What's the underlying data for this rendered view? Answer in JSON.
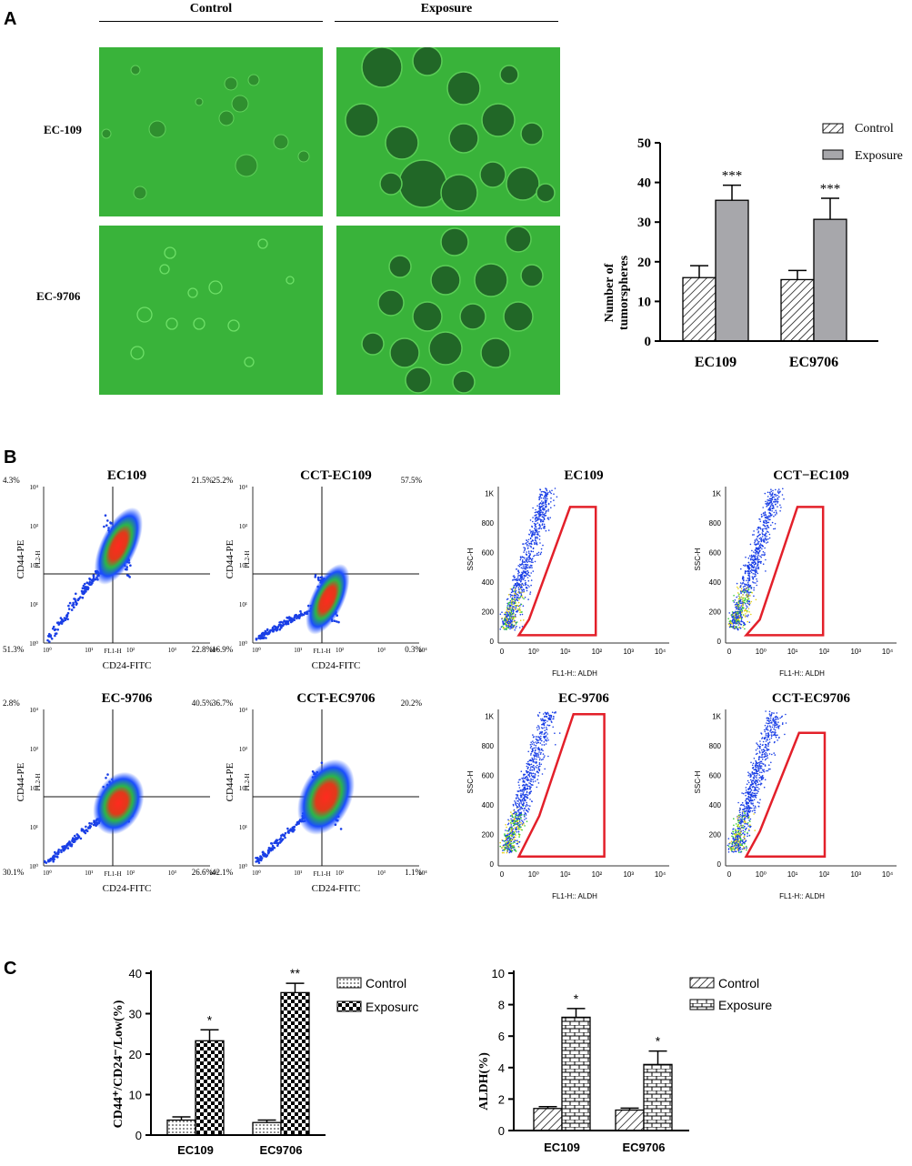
{
  "panels": {
    "a": "A",
    "b": "B",
    "c": "C"
  },
  "panel_a": {
    "col_control": "Control",
    "col_exposure": "Exposure",
    "row_1": "EC-109",
    "row_2": "EC-9706",
    "chart_data": {
      "type": "bar",
      "categories": [
        "EC109",
        "EC9706"
      ],
      "series": [
        {
          "name": "Control",
          "values": [
            16,
            15.5
          ],
          "errors": [
            3,
            2.3
          ]
        },
        {
          "name": "Exposure",
          "values": [
            35.5,
            30.7
          ],
          "errors": [
            3.8,
            5.3
          ]
        }
      ],
      "significance": [
        "***",
        "***"
      ],
      "ylabel_line1": "Number of",
      "ylabel_line2": "tumorspheres",
      "ylim": [
        0,
        50
      ],
      "yticks": [
        "0",
        "10",
        "20",
        "30",
        "40",
        "50"
      ],
      "legend": "top-right"
    }
  },
  "panel_b": {
    "cd_plots": [
      {
        "title": "EC109",
        "q_ul": "4.3%",
        "q_ur": "21.5%",
        "q_ll": "51.3%",
        "q_lr": "22.8%",
        "ylabel": "CD44-PE",
        "ych": "FL2-H",
        "xch": "FL1-H",
        "xlabel": "CD24-FITC"
      },
      {
        "title": "CCT-EC109",
        "q_ul": "25.2%",
        "q_ur": "57.5%",
        "q_ll": "16.9%",
        "q_lr": "0.3%",
        "ylabel": "CD44-PE",
        "ych": "FL2-H",
        "xch": "FL1-H",
        "xlabel": "CD24-FITC"
      },
      {
        "title": "EC-9706",
        "q_ul": "2.8%",
        "q_ur": "40.5%",
        "q_ll": "30.1%",
        "q_lr": "26.6%",
        "ylabel": "CD44-PE",
        "ych": "FL2-H",
        "xch": "FL1-H",
        "xlabel": "CD24-FITC"
      },
      {
        "title": "CCT-EC9706",
        "q_ul": "36.7%",
        "q_ur": "20.2%",
        "q_ll": "42.1%",
        "q_lr": "1.1%",
        "ylabel": "CD44-PE",
        "ych": "FL2-H",
        "xch": "FL1-H",
        "xlabel": "CD24-FITC"
      }
    ],
    "cd_ticks": [
      "10⁰",
      "10¹",
      "10²",
      "10³",
      "10⁴"
    ],
    "aldh_plots": [
      {
        "title": "EC109",
        "ylabel": "SSC-H",
        "xlabel": "FL1-H:: ALDH"
      },
      {
        "title": "CCT−EC109",
        "ylabel": "SSC-H",
        "xlabel": "FL1-H:: ALDH"
      },
      {
        "title": "EC-9706",
        "ylabel": "SSC-H",
        "xlabel": "FL1-H:: ALDH"
      },
      {
        "title": "CCT-EC9706",
        "ylabel": "SSC-H",
        "xlabel": "FL1-H:: ALDH"
      }
    ],
    "aldh_yticks": [
      "0",
      "200",
      "400",
      "600",
      "800",
      "1K"
    ],
    "aldh_xticks": [
      "0",
      "10⁰",
      "10¹",
      "10²",
      "10³",
      "10⁴"
    ]
  },
  "panel_c": {
    "chart_data": [
      {
        "type": "bar",
        "categories": [
          "EC109",
          "EC9706"
        ],
        "series": [
          {
            "name": "Control",
            "values": [
              3.7,
              3.1
            ],
            "errors": [
              0.8,
              0.6
            ]
          },
          {
            "name": "Exposure",
            "values": [
              23.3,
              35.2
            ],
            "errors": [
              2.7,
              2.3
            ]
          }
        ],
        "significance": [
          "*",
          "**"
        ],
        "ylabel": "CD44⁺/CD24⁻/Low(%)",
        "ylim": [
          0,
          40
        ],
        "yticks": [
          "0",
          "10",
          "20",
          "30",
          "40"
        ],
        "legend_exposure_label": "Exposurc",
        "legend": "top-right"
      },
      {
        "type": "bar",
        "categories": [
          "EC109",
          "EC9706"
        ],
        "series": [
          {
            "name": "Control",
            "values": [
              1.4,
              1.3
            ],
            "errors": [
              0.12,
              0.12
            ]
          },
          {
            "name": "Exposure",
            "values": [
              7.2,
              4.2
            ],
            "errors": [
              0.55,
              0.85
            ]
          }
        ],
        "significance": [
          "*",
          "*"
        ],
        "ylabel": "ALDH(%)",
        "ylim": [
          0,
          10
        ],
        "yticks": [
          "0",
          "2",
          "4",
          "6",
          "8",
          "10"
        ],
        "legend_exposure_label": "Exposure",
        "legend": "top-right"
      }
    ]
  }
}
